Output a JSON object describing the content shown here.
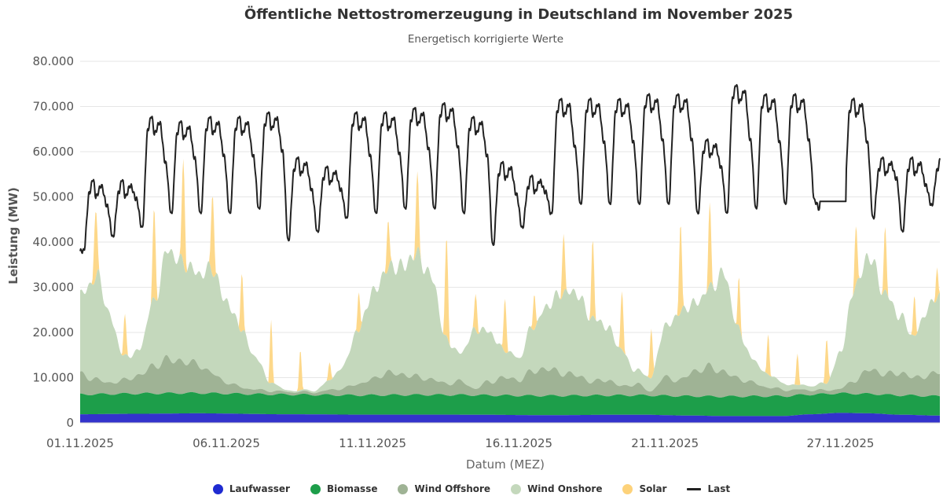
{
  "chart_data": {
    "type": "area",
    "title": "Öffentliche Nettostromerzeugung in Deutschland im November 2025",
    "subtitle": "Energetisch korrigierte Werte",
    "xlabel": "Datum (MEZ)",
    "ylabel": "Leistung (MW)",
    "xlim": [
      1,
      30.4
    ],
    "ylim": [
      0,
      80000
    ],
    "y_ticks": [
      "0",
      "10.000",
      "20.000",
      "30.000",
      "40.000",
      "50.000",
      "60.000",
      "70.000",
      "80.000"
    ],
    "y_tick_values": [
      0,
      10000,
      20000,
      30000,
      40000,
      50000,
      60000,
      70000,
      80000
    ],
    "x_ticks": [
      "01.11.2025",
      "06.11.2025",
      "11.11.2025",
      "16.11.2025",
      "21.11.2025",
      "27.11.2025"
    ],
    "x_tick_days": [
      1,
      6,
      11,
      16,
      21,
      27
    ],
    "grid": true,
    "legend_position": "bottom-center",
    "day_unit": "day of November 2025",
    "stacked": true,
    "series": [
      {
        "name": "Laufwasser",
        "color": "#3333cc",
        "x": [
          1,
          3,
          5,
          8,
          11,
          14,
          17,
          20,
          22,
          23,
          25,
          26,
          27,
          28,
          29,
          30.4
        ],
        "values": [
          1900,
          2000,
          2100,
          1900,
          1800,
          1800,
          1700,
          1800,
          1600,
          1500,
          1500,
          1900,
          2200,
          2100,
          1800,
          1600
        ]
      },
      {
        "name": "Biomasse",
        "color": "#1d9e4a",
        "x": [
          1,
          4,
          7,
          10,
          13,
          16,
          19,
          22,
          25,
          28,
          30.4
        ],
        "values": [
          4400,
          4500,
          4400,
          4300,
          4400,
          4300,
          4300,
          4300,
          4400,
          4300,
          4300
        ]
      },
      {
        "name": "Wind Offshore",
        "color": "#9fb395",
        "x": [
          1,
          1.4,
          2,
          2.5,
          3,
          3.5,
          4,
          4.5,
          5,
          5.5,
          6,
          6.5,
          7,
          7.5,
          8,
          9,
          10,
          10.5,
          11,
          11.5,
          12,
          13,
          13.5,
          14,
          14.5,
          15,
          15.5,
          16,
          16.5,
          17,
          17.5,
          18,
          18.5,
          19,
          19.5,
          20,
          20.5,
          21,
          21.5,
          22,
          22.5,
          23,
          23.5,
          24,
          24.5,
          25,
          25.5,
          26,
          26.5,
          27,
          27.5,
          28,
          28.5,
          29,
          29.5,
          30,
          30.4
        ],
        "values": [
          4500,
          3500,
          2500,
          3000,
          4000,
          6000,
          7500,
          7000,
          6500,
          4500,
          2500,
          1500,
          1000,
          800,
          600,
          600,
          1500,
          2500,
          3500,
          5000,
          4500,
          3500,
          2500,
          3000,
          1500,
          3000,
          4000,
          3500,
          5500,
          6000,
          5000,
          4500,
          3000,
          3500,
          2000,
          2500,
          1000,
          4000,
          3500,
          5500,
          6500,
          5500,
          4000,
          3000,
          2000,
          1500,
          1200,
          1000,
          800,
          1000,
          3000,
          5500,
          4500,
          5000,
          4000,
          4500,
          5500
        ]
      },
      {
        "name": "Wind Onshore",
        "color": "#c4d8bc",
        "x": [
          1,
          1.3,
          1.6,
          2,
          2.5,
          3,
          3.5,
          4,
          4.5,
          5,
          5.5,
          6,
          6.5,
          7,
          7.5,
          8,
          8.5,
          9,
          9.5,
          10,
          10.5,
          11,
          11.5,
          12,
          12.5,
          13,
          13.5,
          14,
          14.5,
          15,
          15.5,
          16,
          16.5,
          17,
          17.5,
          18,
          18.5,
          19,
          19.5,
          20,
          20.5,
          21,
          21.5,
          22,
          22.5,
          23,
          23.5,
          24,
          24.5,
          25,
          25.5,
          26,
          26.5,
          27,
          27.5,
          28,
          28.5,
          29,
          29.5,
          30,
          30.4
        ],
        "values": [
          17000,
          20500,
          23000,
          15000,
          5000,
          5500,
          14000,
          24000,
          22000,
          20000,
          23000,
          18000,
          13000,
          7000,
          2000,
          400,
          300,
          400,
          2000,
          5000,
          12000,
          19000,
          23000,
          24000,
          27000,
          23000,
          10000,
          6000,
          13000,
          11000,
          6000,
          5000,
          10000,
          14000,
          18000,
          18000,
          14000,
          12000,
          8000,
          3000,
          3000,
          11000,
          15000,
          15000,
          17000,
          22000,
          11000,
          5000,
          3000,
          1500,
          1000,
          1000,
          1500,
          8000,
          21000,
          25000,
          18000,
          13000,
          9000,
          15000,
          17000
        ]
      },
      {
        "name": "Solar",
        "color": "#fdd88a",
        "peaks": [
          {
            "day": 1.53,
            "value": 15000,
            "width": 0.26
          },
          {
            "day": 2.53,
            "value": 9000,
            "width": 0.22
          },
          {
            "day": 3.53,
            "value": 20000,
            "width": 0.24
          },
          {
            "day": 4.53,
            "value": 23000,
            "width": 0.24
          },
          {
            "day": 5.53,
            "value": 18000,
            "width": 0.24
          },
          {
            "day": 6.53,
            "value": 13000,
            "width": 0.22
          },
          {
            "day": 7.53,
            "value": 14000,
            "width": 0.2
          },
          {
            "day": 8.53,
            "value": 9000,
            "width": 0.2
          },
          {
            "day": 9.53,
            "value": 4000,
            "width": 0.2
          },
          {
            "day": 10.53,
            "value": 9000,
            "width": 0.2
          },
          {
            "day": 11.53,
            "value": 11000,
            "width": 0.22
          },
          {
            "day": 12.53,
            "value": 17000,
            "width": 0.24
          },
          {
            "day": 13.53,
            "value": 22000,
            "width": 0.24
          },
          {
            "day": 14.53,
            "value": 8000,
            "width": 0.22
          },
          {
            "day": 15.53,
            "value": 12000,
            "width": 0.22
          },
          {
            "day": 16.53,
            "value": 8000,
            "width": 0.2
          },
          {
            "day": 17.53,
            "value": 13000,
            "width": 0.22
          },
          {
            "day": 18.53,
            "value": 17000,
            "width": 0.22
          },
          {
            "day": 19.53,
            "value": 13000,
            "width": 0.22
          },
          {
            "day": 20.53,
            "value": 11000,
            "width": 0.22
          },
          {
            "day": 21.53,
            "value": 20000,
            "width": 0.22
          },
          {
            "day": 22.53,
            "value": 18000,
            "width": 0.22
          },
          {
            "day": 23.53,
            "value": 11000,
            "width": 0.2
          },
          {
            "day": 24.53,
            "value": 9000,
            "width": 0.2
          },
          {
            "day": 25.53,
            "value": 7000,
            "width": 0.2
          },
          {
            "day": 26.53,
            "value": 10000,
            "width": 0.22
          },
          {
            "day": 27.53,
            "value": 13000,
            "width": 0.22
          },
          {
            "day": 28.53,
            "value": 14000,
            "width": 0.22
          },
          {
            "day": 29.53,
            "value": 9000,
            "width": 0.2
          },
          {
            "day": 30.3,
            "value": 7000,
            "width": 0.18
          }
        ]
      },
      {
        "name": "Last",
        "color": "#222222",
        "stacked": false,
        "days": [
          {
            "day": 1,
            "peak": 54000,
            "trough": 38000
          },
          {
            "day": 2,
            "peak": 54000,
            "trough": 41000
          },
          {
            "day": 3,
            "peak": 68000,
            "trough": 43000
          },
          {
            "day": 4,
            "peak": 67000,
            "trough": 46000
          },
          {
            "day": 5,
            "peak": 68000,
            "trough": 46000
          },
          {
            "day": 6,
            "peak": 68000,
            "trough": 46000
          },
          {
            "day": 7,
            "peak": 69000,
            "trough": 47000
          },
          {
            "day": 8,
            "peak": 59000,
            "trough": 40000
          },
          {
            "day": 9,
            "peak": 57000,
            "trough": 42000
          },
          {
            "day": 10,
            "peak": 69000,
            "trough": 45000
          },
          {
            "day": 11,
            "peak": 69000,
            "trough": 46000
          },
          {
            "day": 12,
            "peak": 70000,
            "trough": 47000
          },
          {
            "day": 13,
            "peak": 71000,
            "trough": 47000
          },
          {
            "day": 14,
            "peak": 68000,
            "trough": 46000
          },
          {
            "day": 15,
            "peak": 58000,
            "trough": 39000
          },
          {
            "day": 16,
            "peak": 55000,
            "trough": 43000
          },
          {
            "day": 17,
            "peak": 72000,
            "trough": 46000
          },
          {
            "day": 18,
            "peak": 72000,
            "trough": 48000
          },
          {
            "day": 19,
            "peak": 72000,
            "trough": 48000
          },
          {
            "day": 20,
            "peak": 73000,
            "trough": 48000
          },
          {
            "day": 21,
            "peak": 73000,
            "trough": 48000
          },
          {
            "day": 22,
            "peak": 63000,
            "trough": 46000
          },
          {
            "day": 23,
            "peak": 75000,
            "trough": 46000
          },
          {
            "day": 24,
            "peak": 73000,
            "trough": 47000
          },
          {
            "day": 25,
            "peak": 73000,
            "trough": 48000
          },
          {
            "day": 26,
            "peak": 50000,
            "trough": 49000
          },
          {
            "day": 27,
            "peak": 72000,
            "trough": 48000
          },
          {
            "day": 28,
            "peak": 59000,
            "trough": 45000
          },
          {
            "day": 29,
            "peak": 59000,
            "trough": 42000
          },
          {
            "day": 30,
            "peak": 59000,
            "trough": 48000
          }
        ],
        "flat_segment": {
          "from_day": 26.3,
          "to_day": 27.2,
          "value": 49000
        }
      }
    ]
  },
  "legend": {
    "items": [
      {
        "label": "Laufwasser",
        "color": "#1f2bd1",
        "symbol": "dot"
      },
      {
        "label": "Biomasse",
        "color": "#1d9e4a",
        "symbol": "dot"
      },
      {
        "label": "Wind Offshore",
        "color": "#9fb395",
        "symbol": "dot"
      },
      {
        "label": "Wind Onshore",
        "color": "#c4d8bc",
        "symbol": "dot"
      },
      {
        "label": "Solar",
        "color": "#fdd27a",
        "symbol": "dot"
      },
      {
        "label": "Last",
        "color": "#222222",
        "symbol": "line"
      }
    ]
  }
}
